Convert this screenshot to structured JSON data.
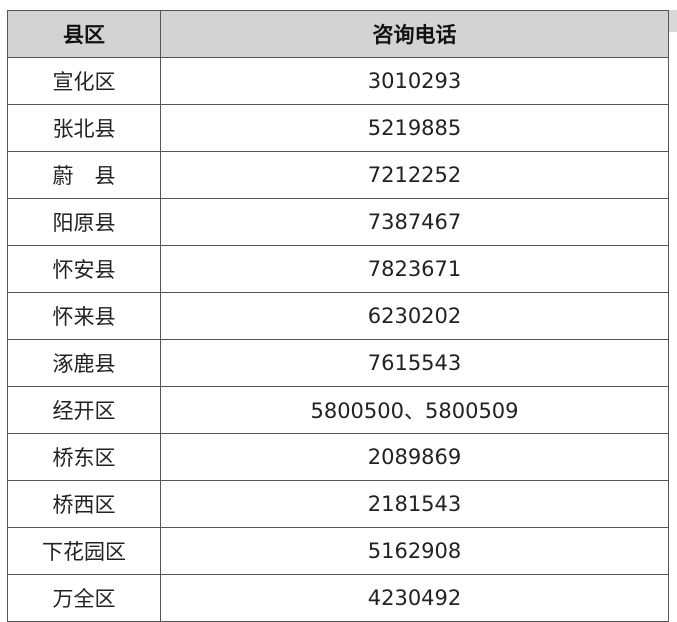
{
  "table": {
    "headers": [
      "县区",
      "咨询电话"
    ],
    "rows": [
      [
        "宣化区",
        "3010293"
      ],
      [
        "张北县",
        "5219885"
      ],
      [
        "蔚　县",
        "7212252"
      ],
      [
        "阳原县",
        "7387467"
      ],
      [
        "怀安县",
        "7823671"
      ],
      [
        "怀来县",
        "6230202"
      ],
      [
        "涿鹿县",
        "7615543"
      ],
      [
        "经开区",
        "5800500、5800509"
      ],
      [
        "桥东区",
        "2089869"
      ],
      [
        "桥西区",
        "2181543"
      ],
      [
        "下花园区",
        "5162908"
      ],
      [
        "万全区",
        "4230492"
      ]
    ]
  }
}
